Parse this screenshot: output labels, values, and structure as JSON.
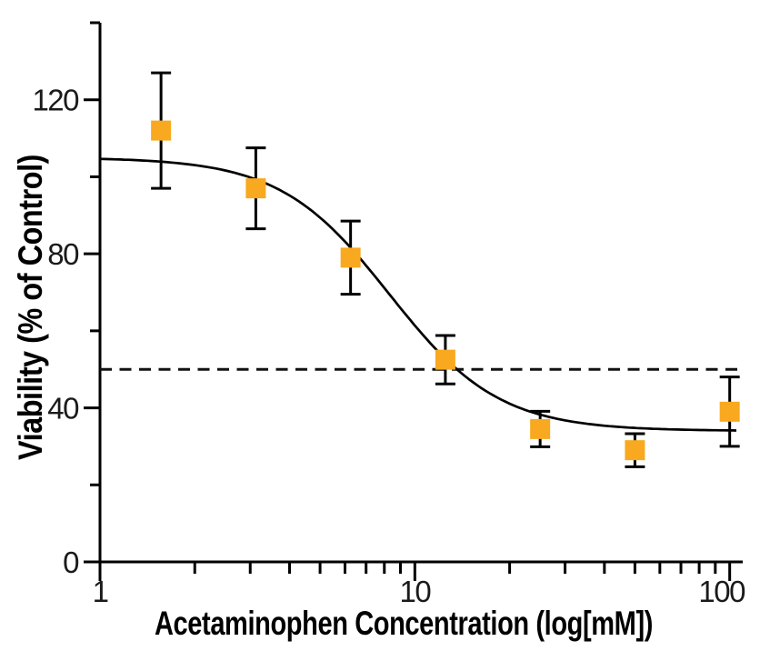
{
  "chart_data": {
    "type": "scatter",
    "title": "",
    "xlabel": "Acetaminophen Concentration (log[mM])",
    "ylabel": "Viability (% of Control)",
    "x_scale": "log",
    "xlim": [
      1,
      110
    ],
    "ylim": [
      0,
      140
    ],
    "x_ticks_major": [
      1,
      10,
      100
    ],
    "x_tick_labels": [
      "1",
      "10",
      "100"
    ],
    "x_ticks_minor": [
      2,
      3,
      4,
      5,
      6,
      7,
      8,
      9,
      20,
      30,
      40,
      50,
      60,
      70,
      80,
      90
    ],
    "y_ticks_major": [
      0,
      40,
      80,
      120
    ],
    "y_tick_labels": [
      "0",
      "40",
      "80",
      "120"
    ],
    "y_ticks_minor": [
      20,
      60,
      100,
      140
    ],
    "grid": false,
    "legend": false,
    "series": [
      {
        "name": "Viability (% of Control)",
        "marker": "square",
        "marker_color": "#F8A91F",
        "x": [
          1.5625,
          3.125,
          6.25,
          12.5,
          25,
          50,
          100
        ],
        "y": [
          112,
          97,
          79,
          52.5,
          34.5,
          29,
          39
        ],
        "y_err": [
          15,
          10.5,
          9.5,
          6.3,
          4.6,
          4.3,
          9
        ]
      }
    ],
    "fit_curve": {
      "model": "4-parameter-logistic",
      "top": 105,
      "bottom": 34,
      "ec50": 8.3,
      "hill": 2.5,
      "x_start": 1,
      "x_end": 105,
      "color": "#000000"
    },
    "reference_line": {
      "y": 50,
      "style": "dashed",
      "color": "#111111"
    }
  }
}
